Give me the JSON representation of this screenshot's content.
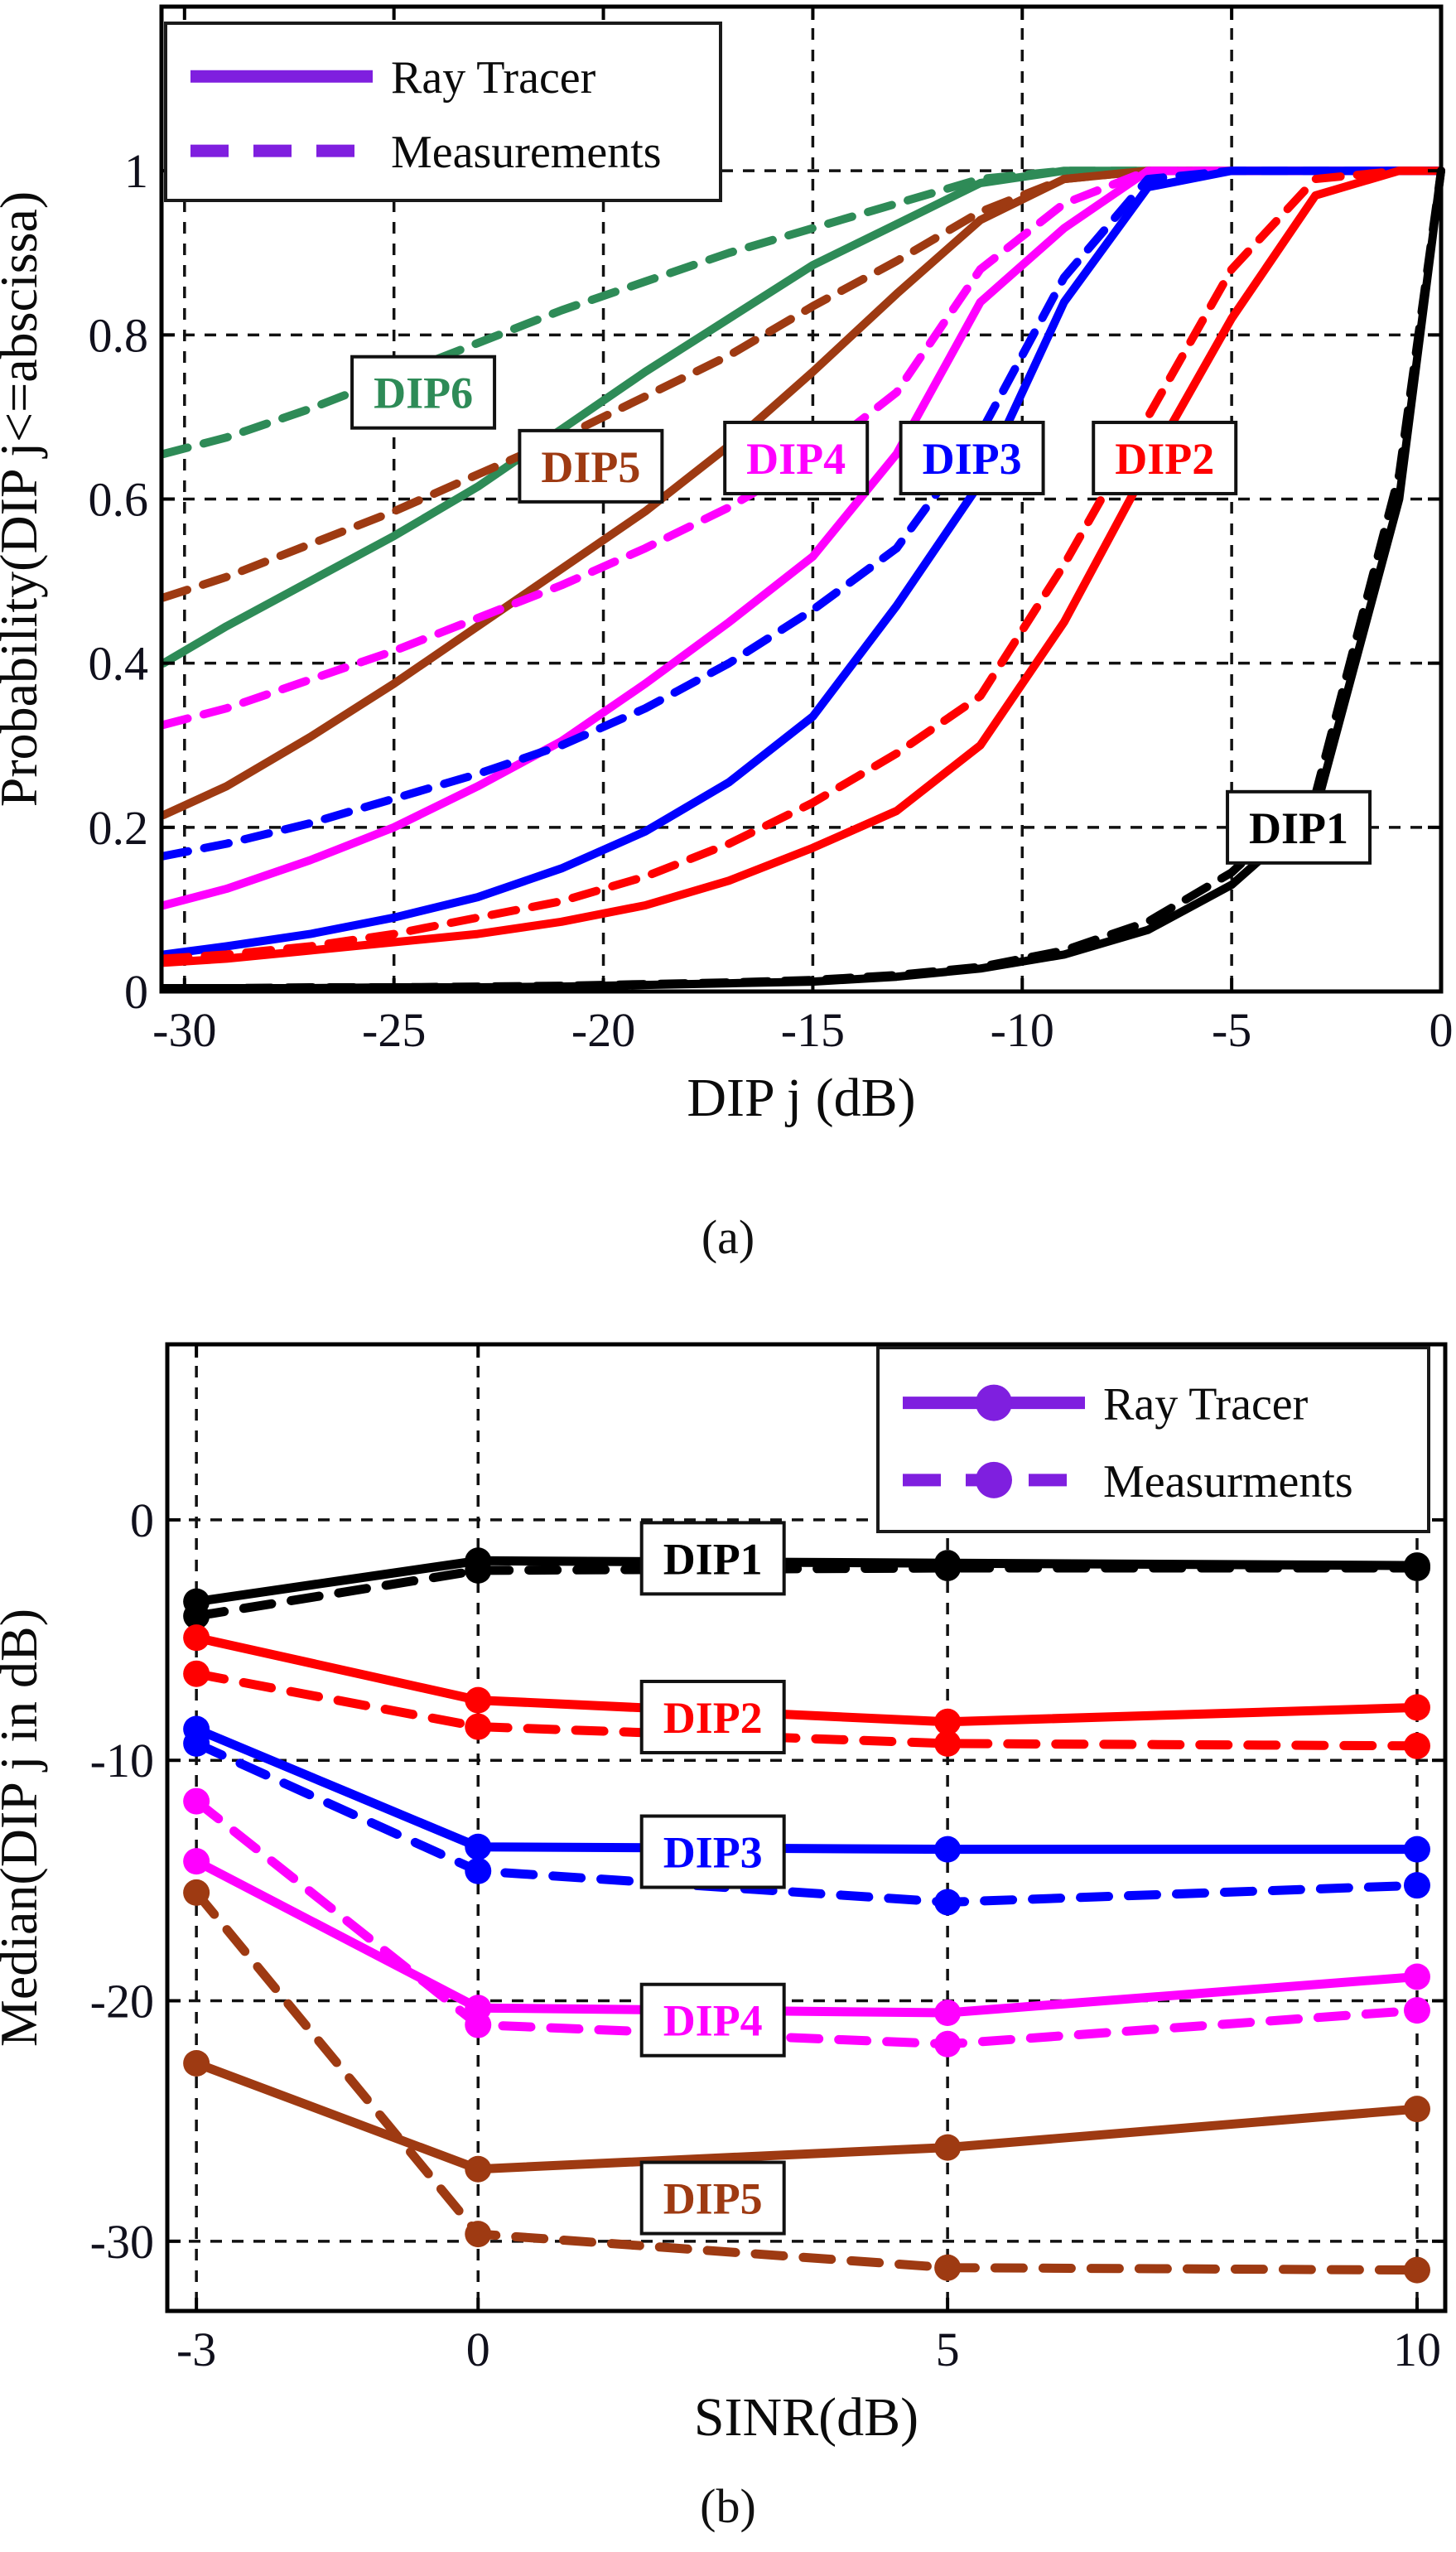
{
  "figure": {
    "background": "#ffffff",
    "captions": {
      "a": "(a)",
      "b": "(b)"
    },
    "accent_purple": "#7f1fdf",
    "grid_color": "#111111",
    "axis_color": "#000000",
    "tick_text_color": "#10101c"
  },
  "captions": {
    "a": "(a)",
    "b": "(b)"
  },
  "chart_data": [
    {
      "id": "a",
      "type": "line",
      "title": "",
      "xlabel": "DIP j (dB)",
      "ylabel": "Probability(DIP j<=abscissa)",
      "xlim": [
        -30.55,
        0
      ],
      "ylim": [
        0,
        1.2
      ],
      "xticks": [
        -30,
        -25,
        -20,
        -15,
        -10,
        -5,
        0
      ],
      "xtick_labels": [
        "-30",
        "-25",
        "-20",
        "-15",
        "-10",
        "-5",
        "0"
      ],
      "yticks": [
        0,
        0.2,
        0.4,
        0.6,
        0.8,
        1
      ],
      "ytick_labels": [
        "0",
        "0.2",
        "0.4",
        "0.6",
        "0.8",
        "1"
      ],
      "grid": true,
      "markers": false,
      "legend": {
        "position": "top-left",
        "color": "#7f1fdf",
        "entries": [
          {
            "label": "Ray Tracer",
            "style": "solid"
          },
          {
            "label": "Measurements",
            "style": "dashed"
          }
        ]
      },
      "x": [
        -30.5,
        -29,
        -27,
        -25,
        -23,
        -21,
        -19,
        -17,
        -15,
        -13,
        -11,
        -9,
        -7,
        -5,
        -3,
        -1,
        0
      ],
      "series": [
        {
          "name": "DIP6 Ray Tracer",
          "color": "#2e8b57",
          "style": "solid",
          "values": [
            0.4,
            0.445,
            0.5,
            0.555,
            0.615,
            0.685,
            0.755,
            0.82,
            0.885,
            0.935,
            0.985,
            1,
            1,
            1,
            1,
            1,
            1
          ]
        },
        {
          "name": "DIP6 Measurements",
          "color": "#2e8b57",
          "style": "dashed",
          "values": [
            0.655,
            0.675,
            0.71,
            0.75,
            0.79,
            0.83,
            0.865,
            0.9,
            0.93,
            0.96,
            0.99,
            1,
            1,
            1,
            1,
            1,
            1
          ]
        },
        {
          "name": "DIP5 Ray Tracer",
          "color": "#9e3a12",
          "style": "solid",
          "values": [
            0.215,
            0.25,
            0.31,
            0.375,
            0.445,
            0.515,
            0.585,
            0.665,
            0.755,
            0.85,
            0.94,
            0.99,
            1,
            1,
            1,
            1,
            1
          ]
        },
        {
          "name": "DIP5 Measurements",
          "color": "#9e3a12",
          "style": "dashed",
          "values": [
            0.48,
            0.505,
            0.545,
            0.585,
            0.63,
            0.675,
            0.725,
            0.775,
            0.835,
            0.89,
            0.95,
            0.99,
            1,
            1,
            1,
            1,
            1
          ]
        },
        {
          "name": "DIP4 Ray Tracer",
          "color": "#ff00ff",
          "style": "solid",
          "values": [
            0.105,
            0.125,
            0.16,
            0.2,
            0.25,
            0.305,
            0.375,
            0.45,
            0.53,
            0.655,
            0.84,
            0.93,
            1,
            1,
            1,
            1,
            1
          ]
        },
        {
          "name": "DIP4 Measurements",
          "color": "#ff00ff",
          "style": "dashed",
          "values": [
            0.325,
            0.345,
            0.38,
            0.415,
            0.455,
            0.495,
            0.54,
            0.59,
            0.65,
            0.73,
            0.88,
            0.96,
            1,
            1,
            1,
            1,
            1
          ]
        },
        {
          "name": "DIP3 Ray Tracer",
          "color": "#0000ff",
          "style": "solid",
          "values": [
            0.045,
            0.055,
            0.07,
            0.09,
            0.115,
            0.15,
            0.195,
            0.255,
            0.335,
            0.47,
            0.62,
            0.84,
            0.98,
            1,
            1,
            1,
            1
          ]
        },
        {
          "name": "DIP3 Measurements",
          "color": "#0000ff",
          "style": "dashed",
          "values": [
            0.165,
            0.18,
            0.205,
            0.235,
            0.265,
            0.3,
            0.345,
            0.4,
            0.465,
            0.54,
            0.68,
            0.87,
            0.99,
            1,
            1,
            1,
            1
          ]
        },
        {
          "name": "DIP2 Ray Tracer",
          "color": "#ff0000",
          "style": "solid",
          "values": [
            0.035,
            0.04,
            0.05,
            0.06,
            0.07,
            0.085,
            0.105,
            0.135,
            0.175,
            0.22,
            0.3,
            0.45,
            0.64,
            0.82,
            0.97,
            1,
            1
          ]
        },
        {
          "name": "DIP2 Measurements",
          "color": "#ff0000",
          "style": "dashed",
          "values": [
            0.04,
            0.045,
            0.055,
            0.07,
            0.09,
            0.11,
            0.14,
            0.18,
            0.23,
            0.29,
            0.36,
            0.52,
            0.7,
            0.88,
            0.99,
            1,
            1
          ]
        },
        {
          "name": "DIP1 Ray Tracer",
          "color": "#000000",
          "style": "solid",
          "values": [
            0.004,
            0.004,
            0.004,
            0.005,
            0.005,
            0.006,
            0.008,
            0.01,
            0.012,
            0.018,
            0.028,
            0.045,
            0.075,
            0.13,
            0.22,
            0.6,
            1
          ]
        },
        {
          "name": "DIP1 Measurements",
          "color": "#000000",
          "style": "dashed",
          "values": [
            0.004,
            0.004,
            0.005,
            0.005,
            0.006,
            0.007,
            0.009,
            0.011,
            0.014,
            0.02,
            0.03,
            0.05,
            0.085,
            0.145,
            0.24,
            0.63,
            1
          ]
        }
      ],
      "labels": [
        {
          "text": "DIP6",
          "color": "#2e8b57",
          "x": -24.3,
          "y": 0.73
        },
        {
          "text": "DIP5",
          "color": "#9e3a12",
          "x": -20.3,
          "y": 0.64
        },
        {
          "text": "DIP4",
          "color": "#ff00ff",
          "x": -15.4,
          "y": 0.65
        },
        {
          "text": "DIP3",
          "color": "#0000ff",
          "x": -11.2,
          "y": 0.65
        },
        {
          "text": "DIP2",
          "color": "#ff0000",
          "x": -6.6,
          "y": 0.65
        },
        {
          "text": "DIP1",
          "color": "#000000",
          "x": -3.4,
          "y": 0.2
        }
      ]
    },
    {
      "id": "b",
      "type": "line",
      "title": "",
      "xlabel": "SINR(dB)",
      "ylabel": "Median(DIP j in dB)",
      "xlim": [
        -3.31,
        10.3
      ],
      "ylim": [
        -32.9,
        7.3
      ],
      "xticks": [
        -3,
        0,
        5,
        10
      ],
      "xtick_labels": [
        "-3",
        "0",
        "5",
        "10"
      ],
      "yticks": [
        0,
        -10,
        -20,
        -30
      ],
      "ytick_labels": [
        "0",
        "-10",
        "-20",
        "-30"
      ],
      "grid": true,
      "markers": true,
      "legend": {
        "position": "top-right",
        "color": "#7f1fdf",
        "entries": [
          {
            "label": "Ray Tracer",
            "style": "solid"
          },
          {
            "label": "Measurments",
            "style": "dashed"
          }
        ]
      },
      "x": [
        -3,
        0,
        5,
        10
      ],
      "series": [
        {
          "name": "DIP1 Ray Tracer",
          "color": "#000000",
          "style": "solid",
          "values": [
            -3.4,
            -1.7,
            -1.8,
            -1.9
          ]
        },
        {
          "name": "DIP1 Measurments",
          "color": "#000000",
          "style": "dashed",
          "values": [
            -4.0,
            -2.1,
            -2.0,
            -2.0
          ]
        },
        {
          "name": "DIP2 Ray Tracer",
          "color": "#ff0000",
          "style": "solid",
          "values": [
            -4.9,
            -7.5,
            -8.4,
            -7.8
          ]
        },
        {
          "name": "DIP2 Measurments",
          "color": "#ff0000",
          "style": "dashed",
          "values": [
            -6.4,
            -8.6,
            -9.3,
            -9.4
          ]
        },
        {
          "name": "DIP3 Ray Tracer",
          "color": "#0000ff",
          "style": "solid",
          "values": [
            -8.7,
            -13.6,
            -13.7,
            -13.7
          ]
        },
        {
          "name": "DIP3 Measurments",
          "color": "#0000ff",
          "style": "dashed",
          "values": [
            -9.3,
            -14.6,
            -15.9,
            -15.2
          ]
        },
        {
          "name": "DIP4 Ray Tracer",
          "color": "#ff00ff",
          "style": "solid",
          "values": [
            -14.2,
            -20.3,
            -20.5,
            -19.0
          ]
        },
        {
          "name": "DIP4 Measurments",
          "color": "#ff00ff",
          "style": "dashed",
          "values": [
            -11.7,
            -21.0,
            -21.8,
            -20.4
          ]
        },
        {
          "name": "DIP5 Ray Tracer",
          "color": "#9e3a12",
          "style": "solid",
          "values": [
            -22.6,
            -27.0,
            -26.1,
            -24.5
          ]
        },
        {
          "name": "DIP5 Measurments",
          "color": "#9e3a12",
          "style": "dashed",
          "values": [
            -15.5,
            -29.7,
            -31.1,
            -31.2
          ]
        }
      ],
      "labels": [
        {
          "text": "DIP1",
          "color": "#000000",
          "x": 2.5,
          "y": -1.6
        },
        {
          "text": "DIP2",
          "color": "#ff0000",
          "x": 2.5,
          "y": -8.2
        },
        {
          "text": "DIP3",
          "color": "#0000ff",
          "x": 2.5,
          "y": -13.8
        },
        {
          "text": "DIP4",
          "color": "#ff00ff",
          "x": 2.5,
          "y": -20.8
        },
        {
          "text": "DIP5",
          "color": "#9e3a12",
          "x": 2.5,
          "y": -28.2
        }
      ]
    }
  ]
}
